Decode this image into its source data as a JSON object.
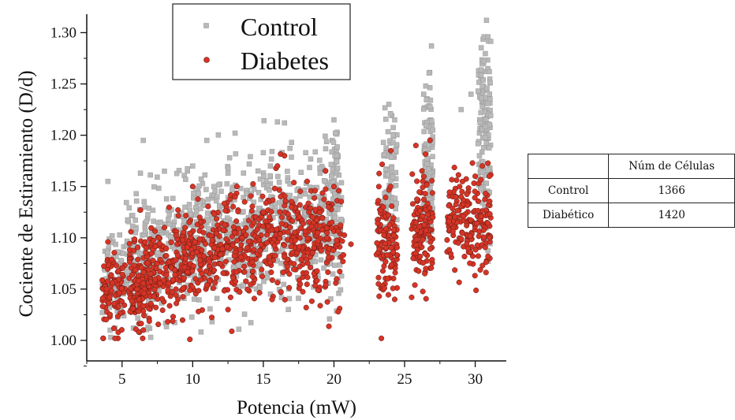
{
  "chart_data": {
    "type": "scatter",
    "xlabel": "Potencia (mW)",
    "ylabel": "Cociente de Estiramiento (D/d)",
    "xlim": [
      2.5,
      32.2
    ],
    "ylim": [
      0.98,
      1.318
    ],
    "xticks": [
      5,
      10,
      15,
      20,
      25,
      30
    ],
    "yticks": [
      "1.00",
      "1.05",
      "1.10",
      "1.15",
      "1.20",
      "1.25",
      "1.30"
    ],
    "grid": false,
    "legend_position": "top-center",
    "series": [
      {
        "name": "Control",
        "marker": "square",
        "color": "#b9b9b9",
        "point_count": 1366,
        "points": [
          [
            4.2,
            1.003
          ],
          [
            4.0,
            1.155
          ],
          [
            4.5,
            1.012
          ],
          [
            4.3,
            1.102
          ],
          [
            6.5,
            1.195
          ],
          [
            6.3,
            1.163
          ],
          [
            6.0,
            1.143
          ],
          [
            5.8,
            1.012
          ],
          [
            6.6,
            1.13
          ],
          [
            8.0,
            1.165
          ],
          [
            9.5,
            1.157
          ],
          [
            10.0,
            1.17
          ],
          [
            9.8,
            1.127
          ],
          [
            11.0,
            1.195
          ],
          [
            11.5,
            1.15
          ],
          [
            12.5,
            1.163
          ],
          [
            13.0,
            1.202
          ],
          [
            14.0,
            1.172
          ],
          [
            15.0,
            1.183
          ],
          [
            15.5,
            1.17
          ],
          [
            16.0,
            1.213
          ],
          [
            16.5,
            1.212
          ],
          [
            17.0,
            1.193
          ],
          [
            18.0,
            1.183
          ],
          [
            19.0,
            1.168
          ],
          [
            20.0,
            1.215
          ],
          [
            20.1,
            1.202
          ],
          [
            19.8,
            1.15
          ],
          [
            20.2,
            1.18
          ],
          [
            20.5,
            1.118
          ],
          [
            23.5,
            1.193
          ],
          [
            24.0,
            1.221
          ],
          [
            24.3,
            1.215
          ],
          [
            24.2,
            1.2
          ],
          [
            24.4,
            1.185
          ],
          [
            24.1,
            1.168
          ],
          [
            26.5,
            1.248
          ],
          [
            26.9,
            1.287
          ],
          [
            26.8,
            1.228
          ],
          [
            27.0,
            1.205
          ],
          [
            26.7,
            1.19
          ],
          [
            26.6,
            1.172
          ],
          [
            30.8,
            1.312
          ],
          [
            30.9,
            1.296
          ],
          [
            30.6,
            1.272
          ],
          [
            31.0,
            1.262
          ],
          [
            30.5,
            1.248
          ],
          [
            30.4,
            1.222
          ],
          [
            30.7,
            1.198
          ],
          [
            30.3,
            1.18
          ],
          [
            29.7,
            1.24
          ],
          [
            29.0,
            1.225
          ]
        ]
      },
      {
        "name": "Diabetes",
        "marker": "circle",
        "color": "#d63426",
        "point_count": 1420,
        "points": [
          [
            4.5,
            1.002
          ],
          [
            4.0,
            1.096
          ],
          [
            3.9,
            1.05
          ],
          [
            6.3,
            1.127
          ],
          [
            6.5,
            1.01
          ],
          [
            6.2,
            1.04
          ],
          [
            8.0,
            1.11
          ],
          [
            9.8,
            1.001
          ],
          [
            10.0,
            1.15
          ],
          [
            10.2,
            1.06
          ],
          [
            10.5,
            1.12
          ],
          [
            12.5,
            1.03
          ],
          [
            13.0,
            1.14
          ],
          [
            13.5,
            1.1
          ],
          [
            15.0,
            1.125
          ],
          [
            16.0,
            1.17
          ],
          [
            16.5,
            1.18
          ],
          [
            17.0,
            1.13
          ],
          [
            18.5,
            1.12
          ],
          [
            19.5,
            1.1
          ],
          [
            20.0,
            1.15
          ],
          [
            20.2,
            1.06
          ],
          [
            20.3,
            1.028
          ],
          [
            23.5,
            1.13
          ],
          [
            23.8,
            1.06
          ],
          [
            24.0,
            1.15
          ],
          [
            24.3,
            1.04
          ],
          [
            25.5,
            1.042
          ],
          [
            26.5,
            1.07
          ],
          [
            26.8,
            1.195
          ],
          [
            27.0,
            1.12
          ],
          [
            29.0,
            1.14
          ],
          [
            30.0,
            1.16
          ],
          [
            30.5,
            1.17
          ],
          [
            31.0,
            1.16
          ],
          [
            31.0,
            1.1
          ]
        ]
      }
    ]
  },
  "legend": {
    "items": [
      {
        "label": "Control"
      },
      {
        "label": "Diabetes"
      }
    ]
  },
  "table": {
    "header": [
      "",
      "Núm de Células"
    ],
    "rows": [
      {
        "label": "Control",
        "value": "1366"
      },
      {
        "label": "Diabético",
        "value": "1420"
      }
    ]
  }
}
